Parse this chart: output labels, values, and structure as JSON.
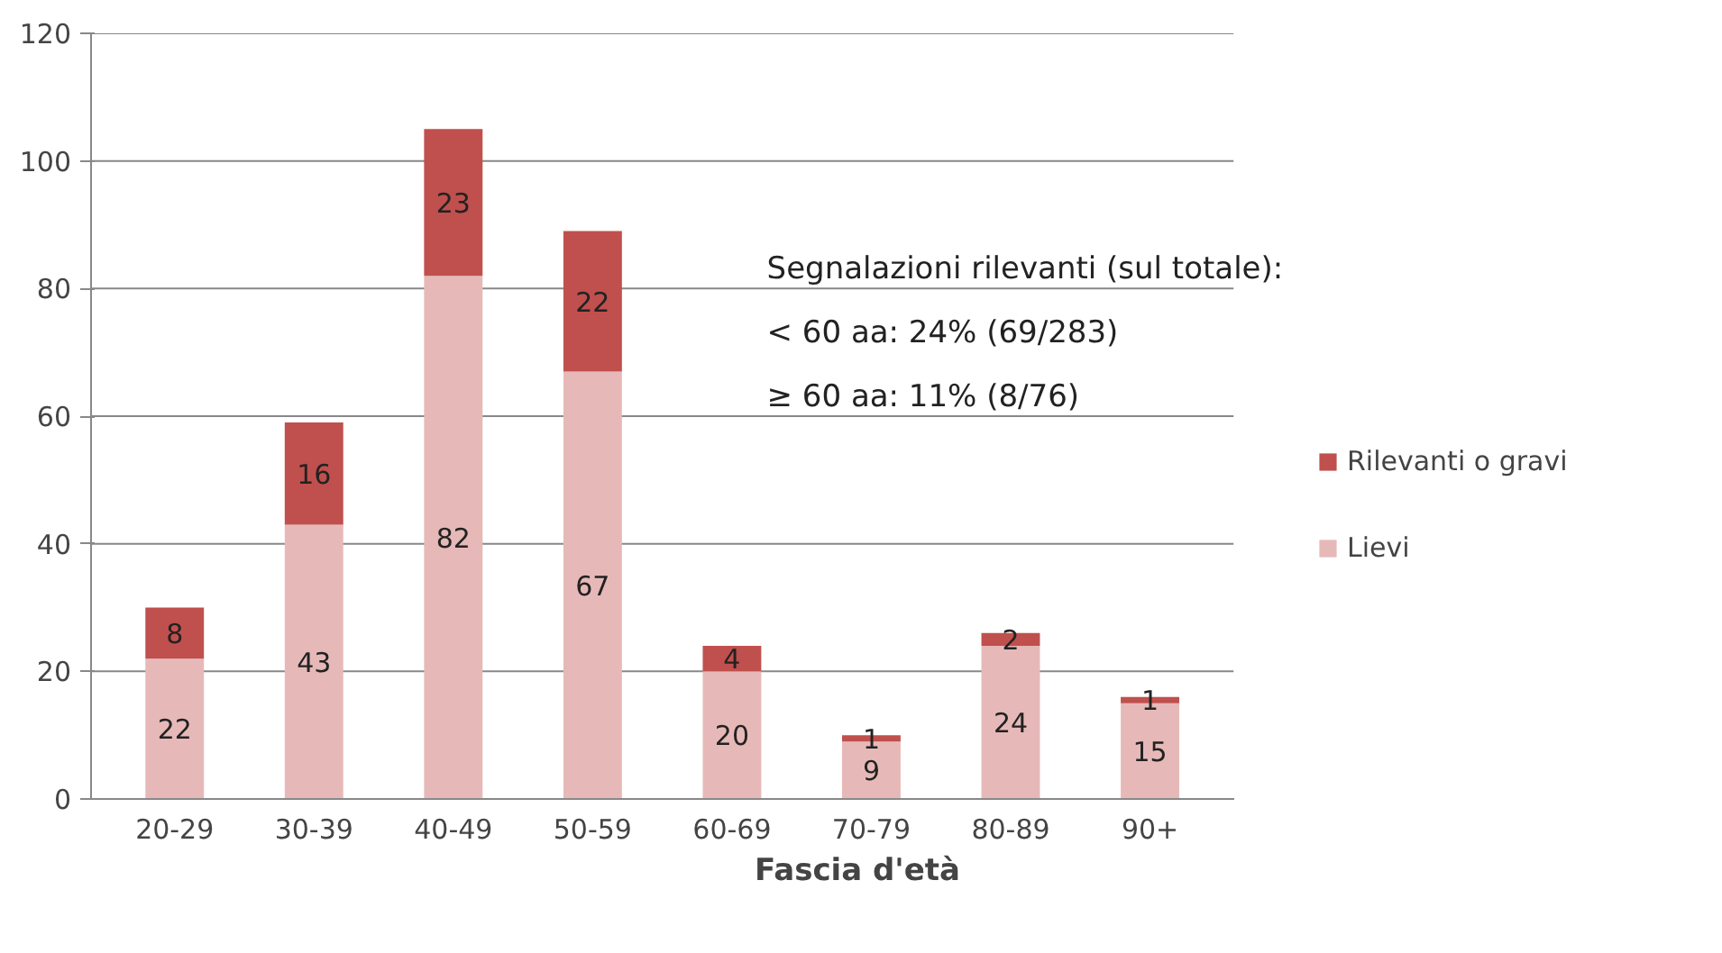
{
  "chart_data": {
    "type": "bar",
    "stacked": true,
    "xlabel": "Fascia d'età",
    "categories": [
      "20-29",
      "30-39",
      "40-49",
      "50-59",
      "60-69",
      "70-79",
      "80-89",
      "90+"
    ],
    "series": [
      {
        "name": "Lievi",
        "color": "#e6b9b8",
        "values": [
          22,
          43,
          82,
          67,
          20,
          9,
          24,
          15
        ]
      },
      {
        "name": "Rilevanti o gravi",
        "color": "#c0504d",
        "values": [
          8,
          16,
          23,
          22,
          4,
          1,
          2,
          1
        ]
      }
    ],
    "ylim": [
      0,
      120
    ],
    "yticks": [
      0,
      20,
      40,
      60,
      80,
      100,
      120
    ],
    "grid": "y",
    "legend": "right",
    "data_labels": true,
    "annotations": [
      "Segnalazioni rilevanti (sul totale):",
      "< 60 aa: 24% (69/283)",
      "≥ 60 aa: 11% (8/76)"
    ]
  }
}
